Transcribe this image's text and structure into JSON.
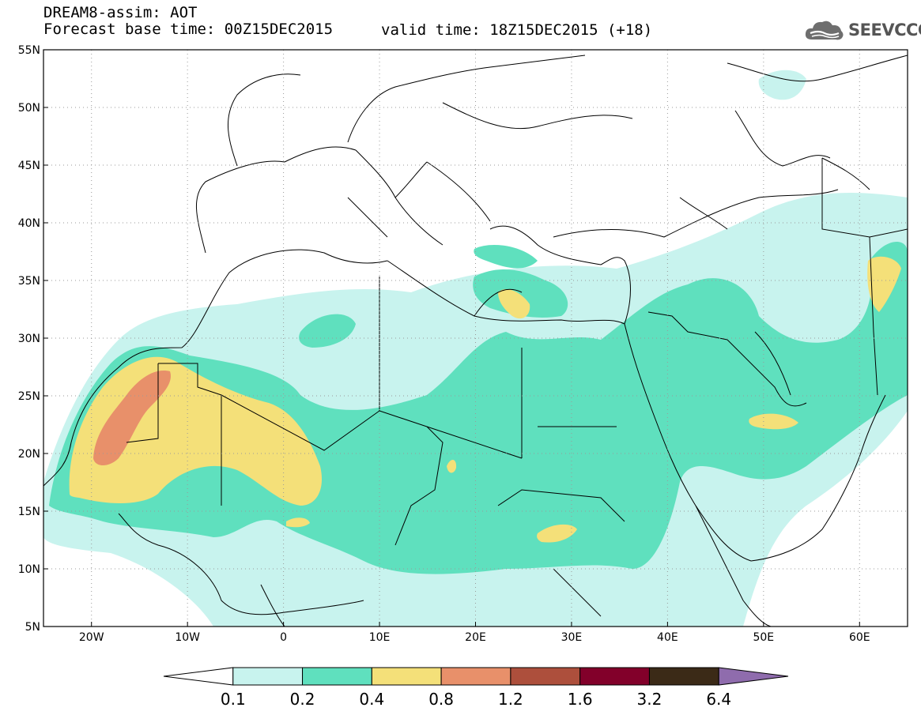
{
  "header": {
    "product": "DREAM8-assim: AOT",
    "base_time": "Forecast base time: 00Z15DEC2015",
    "valid_time": "valid time: 18Z15DEC2015 (+18)"
  },
  "logo": {
    "text": "SEEVCCC",
    "icon": "cloud-icon"
  },
  "map": {
    "extent": {
      "lon": [
        -25,
        65
      ],
      "lat": [
        5,
        55
      ]
    },
    "grid": true,
    "lat_ticks": [
      {
        "value": 55,
        "label": "55N"
      },
      {
        "value": 50,
        "label": "50N"
      },
      {
        "value": 45,
        "label": "45N"
      },
      {
        "value": 40,
        "label": "40N"
      },
      {
        "value": 35,
        "label": "35N"
      },
      {
        "value": 30,
        "label": "30N"
      },
      {
        "value": 25,
        "label": "25N"
      },
      {
        "value": 20,
        "label": "20N"
      },
      {
        "value": 15,
        "label": "15N"
      },
      {
        "value": 10,
        "label": "10N"
      },
      {
        "value": 5,
        "label": "5N"
      }
    ],
    "lon_ticks": [
      {
        "value": -20,
        "label": "20W"
      },
      {
        "value": -10,
        "label": "10W"
      },
      {
        "value": 0,
        "label": "0"
      },
      {
        "value": 10,
        "label": "10E"
      },
      {
        "value": 20,
        "label": "20E"
      },
      {
        "value": 30,
        "label": "30E"
      },
      {
        "value": 40,
        "label": "40E"
      },
      {
        "value": 50,
        "label": "50E"
      },
      {
        "value": 60,
        "label": "60E"
      }
    ]
  },
  "legend": {
    "colors": [
      "#ffffff",
      "#c8f3ee",
      "#5fe0be",
      "#f4e079",
      "#e8906a",
      "#ad4f3c",
      "#82002a",
      "#3b2a17",
      "#8f6cad"
    ],
    "labels": [
      "0.1",
      "0.2",
      "0.4",
      "0.8",
      "1.2",
      "1.6",
      "3.2",
      "6.4"
    ]
  }
}
